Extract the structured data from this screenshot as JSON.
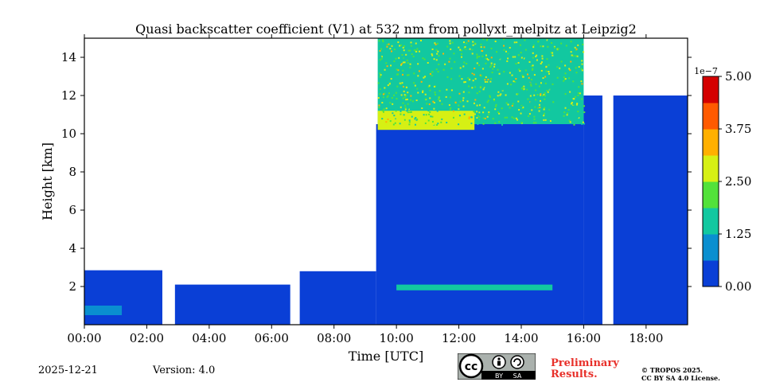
{
  "chart_data": {
    "type": "heatmap",
    "title": "Quasi backscatter coefficient (V1) at 532 nm from pollyxt_melpitz at Leipzig2",
    "xlabel": "Time [UTC]",
    "ylabel": "Height [km]",
    "xlim_hours": [
      0,
      19.33
    ],
    "ylim_km": [
      0,
      15
    ],
    "x_ticks": [
      {
        "value": 0,
        "label": "00:00"
      },
      {
        "value": 2,
        "label": "02:00"
      },
      {
        "value": 4,
        "label": "04:00"
      },
      {
        "value": 6,
        "label": "06:00"
      },
      {
        "value": 8,
        "label": "08:00"
      },
      {
        "value": 10,
        "label": "10:00"
      },
      {
        "value": 12,
        "label": "12:00"
      },
      {
        "value": 14,
        "label": "14:00"
      },
      {
        "value": 16,
        "label": "16:00"
      },
      {
        "value": 18,
        "label": "18:00"
      }
    ],
    "y_ticks": [
      {
        "value": 2,
        "label": "2"
      },
      {
        "value": 4,
        "label": "4"
      },
      {
        "value": 6,
        "label": "6"
      },
      {
        "value": 8,
        "label": "8"
      },
      {
        "value": 10,
        "label": "10"
      },
      {
        "value": 12,
        "label": "12"
      },
      {
        "value": 14,
        "label": "14"
      }
    ],
    "colorbar": {
      "min": 0,
      "max": 5e-07,
      "multiplier_label": "1e−7",
      "ticks": [
        {
          "value": 0,
          "label": "0.00"
        },
        {
          "value": 1.25,
          "label": "1.25"
        },
        {
          "value": 2.5,
          "label": "2.50"
        },
        {
          "value": 3.75,
          "label": "3.75"
        },
        {
          "value": 5,
          "label": "5.00"
        }
      ],
      "colors": [
        "#0a3fd6",
        "#0a8fd0",
        "#12c8a0",
        "#52e23a",
        "#d6f014",
        "#ffb000",
        "#ff5a00",
        "#d40000"
      ]
    },
    "regions": [
      {
        "t0": 0,
        "t1": 2.5,
        "h0": 0,
        "h1": 2.85,
        "level": 0.05,
        "desc": "boundary layer"
      },
      {
        "t0": 0,
        "t1": 1.2,
        "h0": 0.5,
        "h1": 1.0,
        "level": 0.2,
        "desc": "aerosol band"
      },
      {
        "t0": 2.9,
        "t1": 6.6,
        "h0": 0,
        "h1": 2.1,
        "level": 0.08,
        "desc": "boundary layer"
      },
      {
        "t0": 6.9,
        "t1": 9.35,
        "h0": 0,
        "h1": 2.8,
        "level": 0.06,
        "desc": "boundary layer"
      },
      {
        "t0": 9.35,
        "t1": 16.0,
        "h0": 0,
        "h1": 10.5,
        "level": 0.04,
        "desc": "background"
      },
      {
        "t0": 9.4,
        "t1": 16.0,
        "h0": 10.5,
        "h1": 15,
        "level": 0.3,
        "desc": "noisy upper layer"
      },
      {
        "t0": 9.4,
        "t1": 12.5,
        "h0": 10.2,
        "h1": 11.2,
        "level": 0.5,
        "desc": "cloud base"
      },
      {
        "t0": 10,
        "t1": 15,
        "h0": 1.8,
        "h1": 2.1,
        "level": 0.25,
        "desc": "residual layer"
      },
      {
        "t0": 16.0,
        "t1": 19.33,
        "h0": 0,
        "h1": 12,
        "level": 0.05,
        "desc": "columns"
      }
    ],
    "gaps": [
      {
        "t0": 2.5,
        "t1": 2.9
      },
      {
        "t0": 6.6,
        "t1": 6.9
      },
      {
        "t0": 16.6,
        "t1": 16.95
      }
    ]
  },
  "footer": {
    "date": "2025-12-21",
    "version": "Version: 4.0",
    "preliminary_line1": "Preliminary",
    "preliminary_line2": "Results.",
    "copyright_line1": "© TROPOS 2025.",
    "copyright_line2": "CC BY SA 4.0 License.",
    "cc_by": "BY",
    "cc_sa": "SA",
    "cc_mark": "cc"
  }
}
